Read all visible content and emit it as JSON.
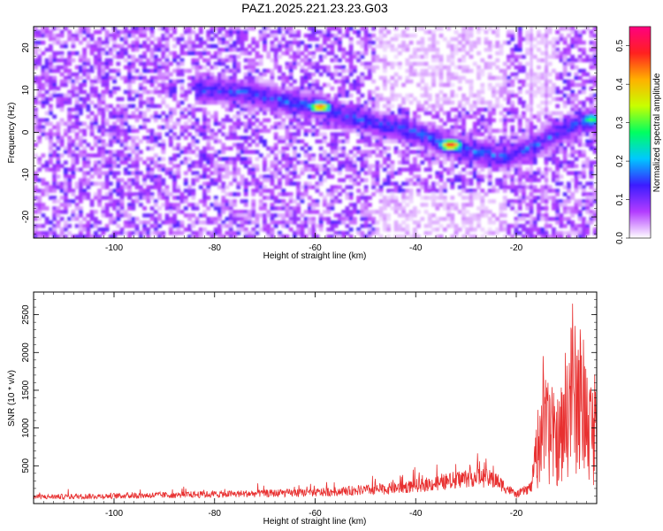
{
  "chart_data": [
    {
      "type": "heatmap",
      "title": "PAZ1.2025.221.23.23.G03",
      "xlabel": "Height of straight line (km)",
      "ylabel": "Frequency (Hz)",
      "xlim": [
        -116,
        -4
      ],
      "ylim": [
        -25,
        25
      ],
      "xticks": [
        -100,
        -80,
        -60,
        -40,
        -20
      ],
      "yticks": [
        20,
        10,
        0,
        -10,
        -20
      ],
      "colorbar": {
        "label": "Normalized spectral amplitude",
        "range": [
          0,
          0.55
        ],
        "ticks": [
          0.0,
          0.1,
          0.2,
          0.3,
          0.4,
          0.5
        ],
        "colors": [
          "#ffffff",
          "#b23cff",
          "#3c1cff",
          "#00c8ff",
          "#00ff60",
          "#c8ff00",
          "#ffb000",
          "#ff2020",
          "#ff0080"
        ]
      },
      "ridge": [
        {
          "x": -80,
          "y": 10
        },
        {
          "x": -72,
          "y": 9
        },
        {
          "x": -65,
          "y": 7
        },
        {
          "x": -59,
          "y": 6
        },
        {
          "x": -55,
          "y": 4
        },
        {
          "x": -48,
          "y": 2
        },
        {
          "x": -40,
          "y": 0
        },
        {
          "x": -34,
          "y": -3
        },
        {
          "x": -27,
          "y": -5
        },
        {
          "x": -22,
          "y": -6
        },
        {
          "x": -16,
          "y": -3
        },
        {
          "x": -10,
          "y": 1
        },
        {
          "x": -5,
          "y": 3
        }
      ],
      "peaks": [
        {
          "x": -59,
          "y": 6,
          "amplitude": 0.45
        },
        {
          "x": -33,
          "y": -3,
          "amplitude": 0.5
        },
        {
          "x": -5,
          "y": 3,
          "amplitude": 0.3
        }
      ]
    },
    {
      "type": "line",
      "xlabel": "Height of straight line (km)",
      "ylabel": "SNR (10 * v/v)",
      "xlim": [
        -116,
        -4
      ],
      "ylim": [
        0,
        2800
      ],
      "xticks": [
        -100,
        -80,
        -60,
        -40,
        -20
      ],
      "yticks": [
        500,
        1000,
        1500,
        2000,
        2500
      ],
      "line_color": "#e83030",
      "envelope": [
        {
          "x": -116,
          "snr": 120
        },
        {
          "x": -100,
          "snr": 140
        },
        {
          "x": -80,
          "snr": 170
        },
        {
          "x": -60,
          "snr": 200
        },
        {
          "x": -45,
          "snr": 270
        },
        {
          "x": -35,
          "snr": 380
        },
        {
          "x": -28,
          "snr": 500
        },
        {
          "x": -24,
          "snr": 420
        },
        {
          "x": -20,
          "snr": 160
        },
        {
          "x": -17,
          "snr": 300
        },
        {
          "x": -15,
          "snr": 1800
        },
        {
          "x": -13,
          "snr": 1500
        },
        {
          "x": -11,
          "snr": 1400
        },
        {
          "x": -9,
          "snr": 2500
        },
        {
          "x": -7,
          "snr": 2200
        },
        {
          "x": -5,
          "snr": 1700
        },
        {
          "x": -4,
          "snr": 1400
        }
      ]
    }
  ]
}
